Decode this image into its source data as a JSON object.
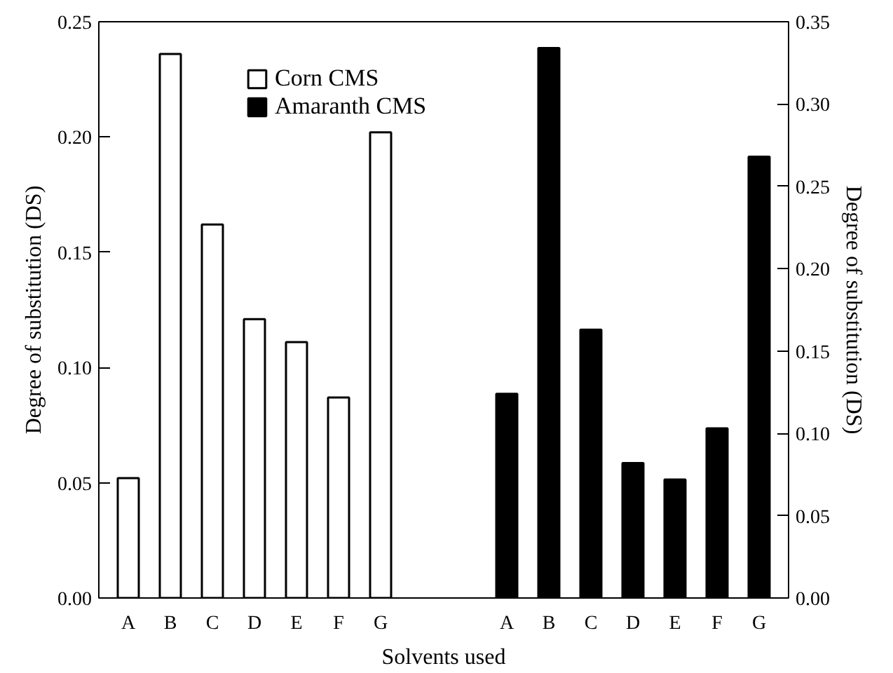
{
  "chart_data": {
    "type": "bar",
    "xlabel": "Solvents used",
    "ylabel": "Degree of substitution (DS)",
    "y2label": "Degree of substitution (DS)",
    "categories": [
      "A",
      "B",
      "C",
      "D",
      "E",
      "F",
      "G",
      null,
      null,
      "A",
      "B",
      "C",
      "D",
      "E",
      "F",
      "G"
    ],
    "series": [
      {
        "name": "Corn CMS",
        "color": "#ffffff",
        "values": [
          0.052,
          0.236,
          0.162,
          0.121,
          0.111,
          0.087,
          0.202,
          null,
          null,
          null,
          null,
          null,
          null,
          null,
          null,
          null
        ]
      },
      {
        "name": "Amaranth CMS",
        "color": "#000000",
        "axis": "y2",
        "values": [
          null,
          null,
          null,
          null,
          null,
          null,
          null,
          null,
          null,
          0.124,
          0.334,
          0.163,
          0.082,
          0.072,
          0.103,
          0.268
        ]
      }
    ],
    "ylim": [
      0,
      0.25
    ],
    "yticks": [
      {
        "value": 0,
        "label": "0.00"
      },
      0.05,
      {
        "value": 0.1,
        "label": "0.10"
      },
      0.15,
      {
        "value": 0.2,
        "label": "0.20"
      },
      0.25
    ],
    "y2lim": [
      0,
      0.35
    ],
    "y2ticks": [
      {
        "value": 0,
        "label": "0.00"
      },
      0.05,
      {
        "value": 0.1,
        "label": "0.10"
      },
      0.15,
      {
        "value": 0.2,
        "label": "0.20"
      },
      0.25,
      {
        "value": 0.3,
        "label": "0.30"
      },
      0.35
    ],
    "grid": false,
    "legend": "top center"
  }
}
